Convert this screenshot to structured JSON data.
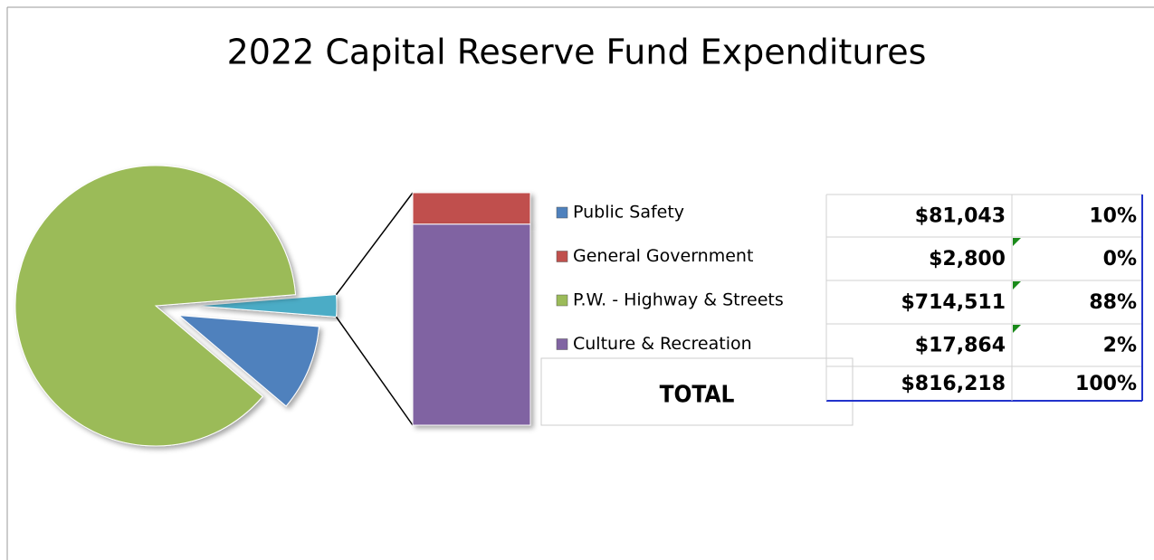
{
  "chart_data": {
    "type": "pie",
    "title": "2022 Capital Reserve Fund Expenditures",
    "categories": [
      "Public Safety",
      "General Government",
      "P.W. - Highway & Streets",
      "Culture & Recreation"
    ],
    "values": [
      81043,
      2800,
      714511,
      17864
    ],
    "value_labels": [
      "$81,043",
      "$2,800",
      "$714,511",
      "$17,864"
    ],
    "percent_labels": [
      "10%",
      "0%",
      "88%",
      "2%"
    ],
    "colors": [
      "#4f81bd",
      "#c0504d",
      "#9bbb59",
      "#8064a2"
    ],
    "other_color": "#4bacc6",
    "total": {
      "label": "TOTAL",
      "value_label": "$816,218",
      "percent_label": "100%"
    }
  }
}
